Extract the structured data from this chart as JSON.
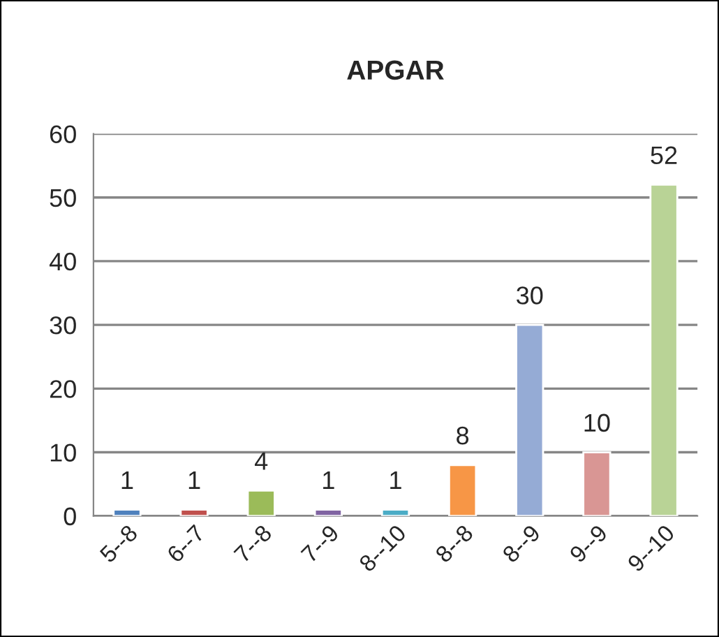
{
  "chart_data": {
    "type": "bar",
    "title": "APGAR",
    "categories": [
      "5--8",
      "6--7",
      "7--8",
      "7--9",
      "8--10",
      "8--8",
      "8--9",
      "9--9",
      "9--10"
    ],
    "values": [
      1,
      1,
      4,
      1,
      1,
      8,
      30,
      10,
      52
    ],
    "colors": [
      "#4f81bd",
      "#c0504d",
      "#9bbb59",
      "#8064a2",
      "#4bacc6",
      "#f79646",
      "#95abd5",
      "#d99694",
      "#b9d396"
    ],
    "ylim": [
      0,
      60
    ],
    "yticks": [
      0,
      10,
      20,
      30,
      40,
      50,
      60
    ],
    "grid": "y",
    "data_labels": true
  }
}
